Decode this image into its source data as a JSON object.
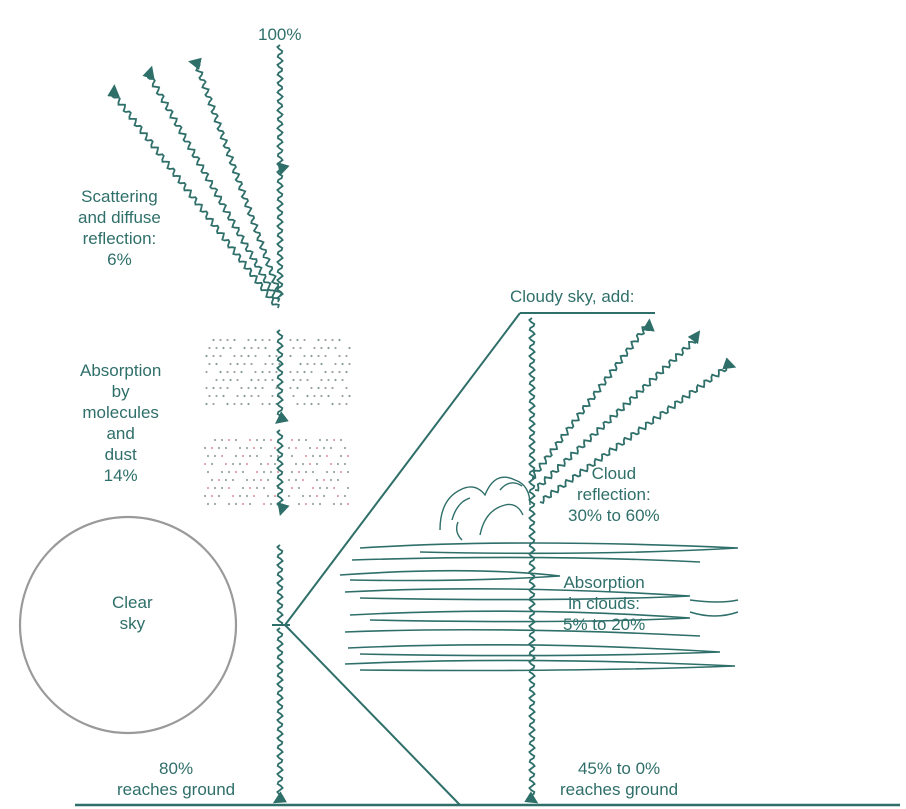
{
  "colors": {
    "ink": "#2f6f6a",
    "dots_pink": "#e0a0a8",
    "dots_gray": "#8a9a98",
    "circle": "#9a9a9a"
  },
  "labels": {
    "incoming": "100%",
    "scattering": [
      "Scattering",
      "and diffuse",
      "reflection:",
      "6%"
    ],
    "absorption_molecules": [
      "Absorption",
      "by",
      "molecules",
      "and",
      "dust",
      "14%"
    ],
    "clear_sky": [
      "Clear",
      "sky"
    ],
    "reaches_clear": [
      "80%",
      "reaches ground"
    ],
    "cloudy_sky": "Cloudy sky, add:",
    "cloud_reflection": [
      "Cloud",
      "reflection:",
      "30% to 60%"
    ],
    "absorption_clouds": [
      "Absorption",
      "in clouds:",
      "5% to 20%"
    ],
    "reaches_cloudy": [
      "45% to 0%",
      "reaches ground"
    ]
  }
}
